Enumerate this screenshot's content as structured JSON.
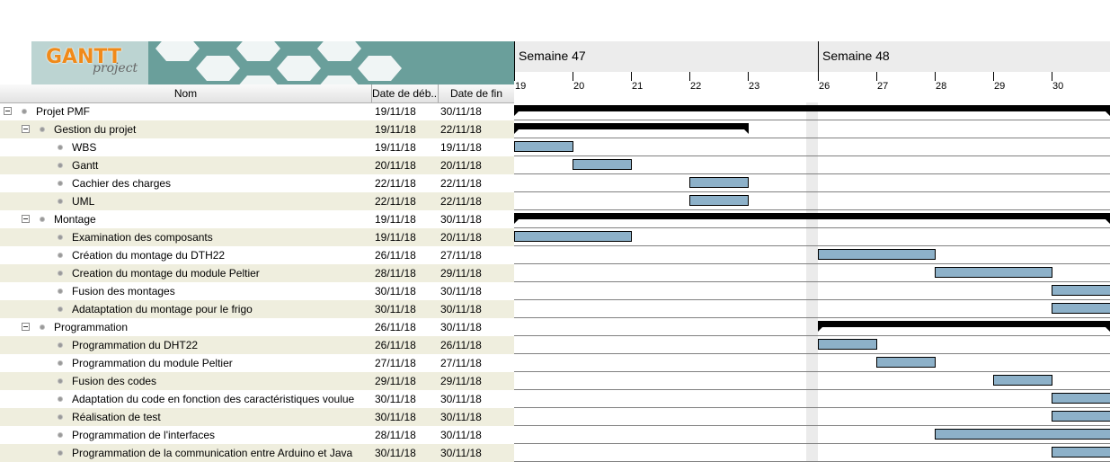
{
  "app": {
    "logo_text": "GANTT",
    "logo_sub": "project"
  },
  "columns": {
    "name": "Nom",
    "start": "Date de déb...",
    "end": "Date de fin"
  },
  "chart": {
    "weeks": [
      "Semaine 47",
      "Semaine 48"
    ],
    "days": [
      "19",
      "20",
      "21",
      "22",
      "23",
      "26",
      "27",
      "28",
      "29",
      "30"
    ],
    "bar_color": "#8db1c9",
    "row_alt_color": "#efeede"
  },
  "tasks": [
    {
      "name": "Projet PMF",
      "start": "19/11/18",
      "end": "30/11/18",
      "level": 0,
      "summary": true,
      "from": 0,
      "to": 10,
      "open_end": true
    },
    {
      "name": "Gestion du projet",
      "start": "19/11/18",
      "end": "22/11/18",
      "level": 1,
      "summary": true,
      "from": 0,
      "to": 4
    },
    {
      "name": "WBS",
      "start": "19/11/18",
      "end": "19/11/18",
      "level": 2,
      "from": 0,
      "to": 1
    },
    {
      "name": "Gantt",
      "start": "20/11/18",
      "end": "20/11/18",
      "level": 2,
      "from": 1,
      "to": 2
    },
    {
      "name": "Cachier des charges",
      "start": "22/11/18",
      "end": "22/11/18",
      "level": 2,
      "from": 3,
      "to": 4
    },
    {
      "name": "UML",
      "start": "22/11/18",
      "end": "22/11/18",
      "level": 2,
      "from": 3,
      "to": 4
    },
    {
      "name": "Montage",
      "start": "19/11/18",
      "end": "30/11/18",
      "level": 1,
      "summary": true,
      "from": 0,
      "to": 10,
      "open_end": true
    },
    {
      "name": "Examination des composants",
      "start": "19/11/18",
      "end": "20/11/18",
      "level": 2,
      "from": 0,
      "to": 2
    },
    {
      "name": "Création du montage du DTH22",
      "start": "26/11/18",
      "end": "27/11/18",
      "level": 2,
      "from": 5,
      "to": 7
    },
    {
      "name": "Creation du montage du module Peltier",
      "start": "28/11/18",
      "end": "29/11/18",
      "level": 2,
      "from": 7,
      "to": 9
    },
    {
      "name": "Fusion des montages",
      "start": "30/11/18",
      "end": "30/11/18",
      "level": 2,
      "from": 9,
      "to": 10,
      "open_end": true
    },
    {
      "name": "Adataptation du montage pour le frigo",
      "start": "30/11/18",
      "end": "30/11/18",
      "level": 2,
      "from": 9,
      "to": 10,
      "open_end": true
    },
    {
      "name": "Programmation",
      "start": "26/11/18",
      "end": "30/11/18",
      "level": 1,
      "summary": true,
      "from": 5,
      "to": 10,
      "open_end": true
    },
    {
      "name": "Programmation du DHT22",
      "start": "26/11/18",
      "end": "26/11/18",
      "level": 2,
      "from": 5,
      "to": 6
    },
    {
      "name": "Programmation du module Peltier",
      "start": "27/11/18",
      "end": "27/11/18",
      "level": 2,
      "from": 6,
      "to": 7
    },
    {
      "name": "Fusion des codes",
      "start": "29/11/18",
      "end": "29/11/18",
      "level": 2,
      "from": 8,
      "to": 9
    },
    {
      "name": "Adaptation du code en fonction des caractéristiques voulue",
      "start": "30/11/18",
      "end": "30/11/18",
      "level": 2,
      "from": 9,
      "to": 10,
      "open_end": true
    },
    {
      "name": "Réalisation de test",
      "start": "30/11/18",
      "end": "30/11/18",
      "level": 2,
      "from": 9,
      "to": 10,
      "open_end": true
    },
    {
      "name": "Programmation de l'interfaces",
      "start": "28/11/18",
      "end": "30/11/18",
      "level": 2,
      "from": 7,
      "to": 10,
      "open_end": true
    },
    {
      "name": "Programmation de la communication entre Arduino et Java",
      "start": "30/11/18",
      "end": "30/11/18",
      "level": 2,
      "from": 9,
      "to": 10,
      "open_end": true
    }
  ]
}
